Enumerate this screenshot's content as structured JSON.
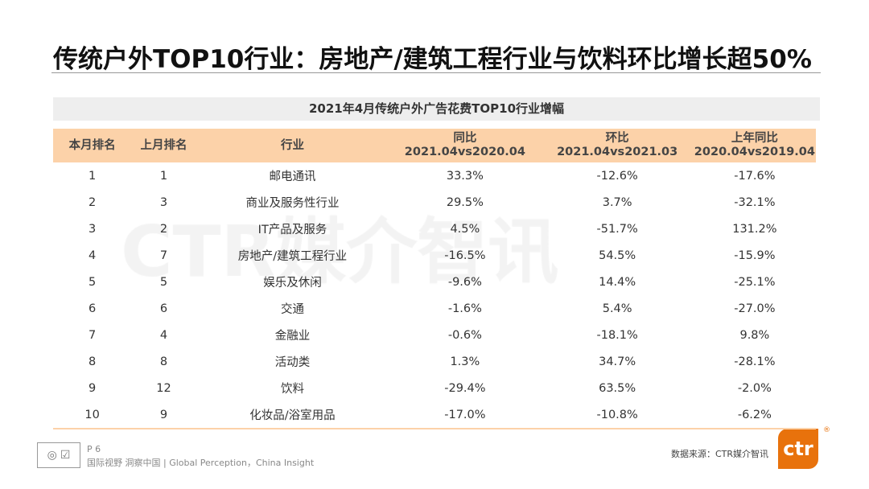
{
  "title": "传统户外TOP10行业：房地产/建筑工程行业与饮料环比增长超50%",
  "table": {
    "caption": "2021年4月传统户外广告花费TOP10行业增幅",
    "headers": [
      [
        "本月排名"
      ],
      [
        "上月排名"
      ],
      [
        "行业"
      ],
      [
        "同比",
        "2021.04vs2020.04"
      ],
      [
        "环比",
        "2021.04vs2021.03"
      ],
      [
        "上年同比",
        "2020.04vs2019.04"
      ]
    ],
    "rows": [
      [
        "1",
        "1",
        "邮电通讯",
        "33.3%",
        "-12.6%",
        "-17.6%"
      ],
      [
        "2",
        "3",
        "商业及服务性行业",
        "29.5%",
        "3.7%",
        "-32.1%"
      ],
      [
        "3",
        "2",
        "IT产品及服务",
        "4.5%",
        "-51.7%",
        "131.2%"
      ],
      [
        "4",
        "7",
        "房地产/建筑工程行业",
        "-16.5%",
        "54.5%",
        "-15.9%"
      ],
      [
        "5",
        "5",
        "娱乐及休闲",
        "-9.6%",
        "14.4%",
        "-25.1%"
      ],
      [
        "6",
        "6",
        "交通",
        "-1.6%",
        "5.4%",
        "-27.0%"
      ],
      [
        "7",
        "4",
        "金融业",
        "-0.6%",
        "-18.1%",
        "9.8%"
      ],
      [
        "8",
        "8",
        "活动类",
        "1.3%",
        "34.7%",
        "-28.1%"
      ],
      [
        "9",
        "12",
        "饮料",
        "-29.4%",
        "63.5%",
        "-2.0%"
      ],
      [
        "10",
        "9",
        "化妆品/浴室用品",
        "-17.0%",
        "-10.8%",
        "-6.2%"
      ]
    ]
  },
  "watermark": "CTR媒介智讯",
  "footer": {
    "page": "P 6",
    "slogan": "国际视野  洞察中国 | Global Perception，China Insight",
    "source": "数据来源：CTR媒介智讯",
    "logo": "ctr",
    "reg": "®"
  },
  "colors": {
    "header_bg": "#fcd2a9",
    "brand": "#e8720c"
  }
}
